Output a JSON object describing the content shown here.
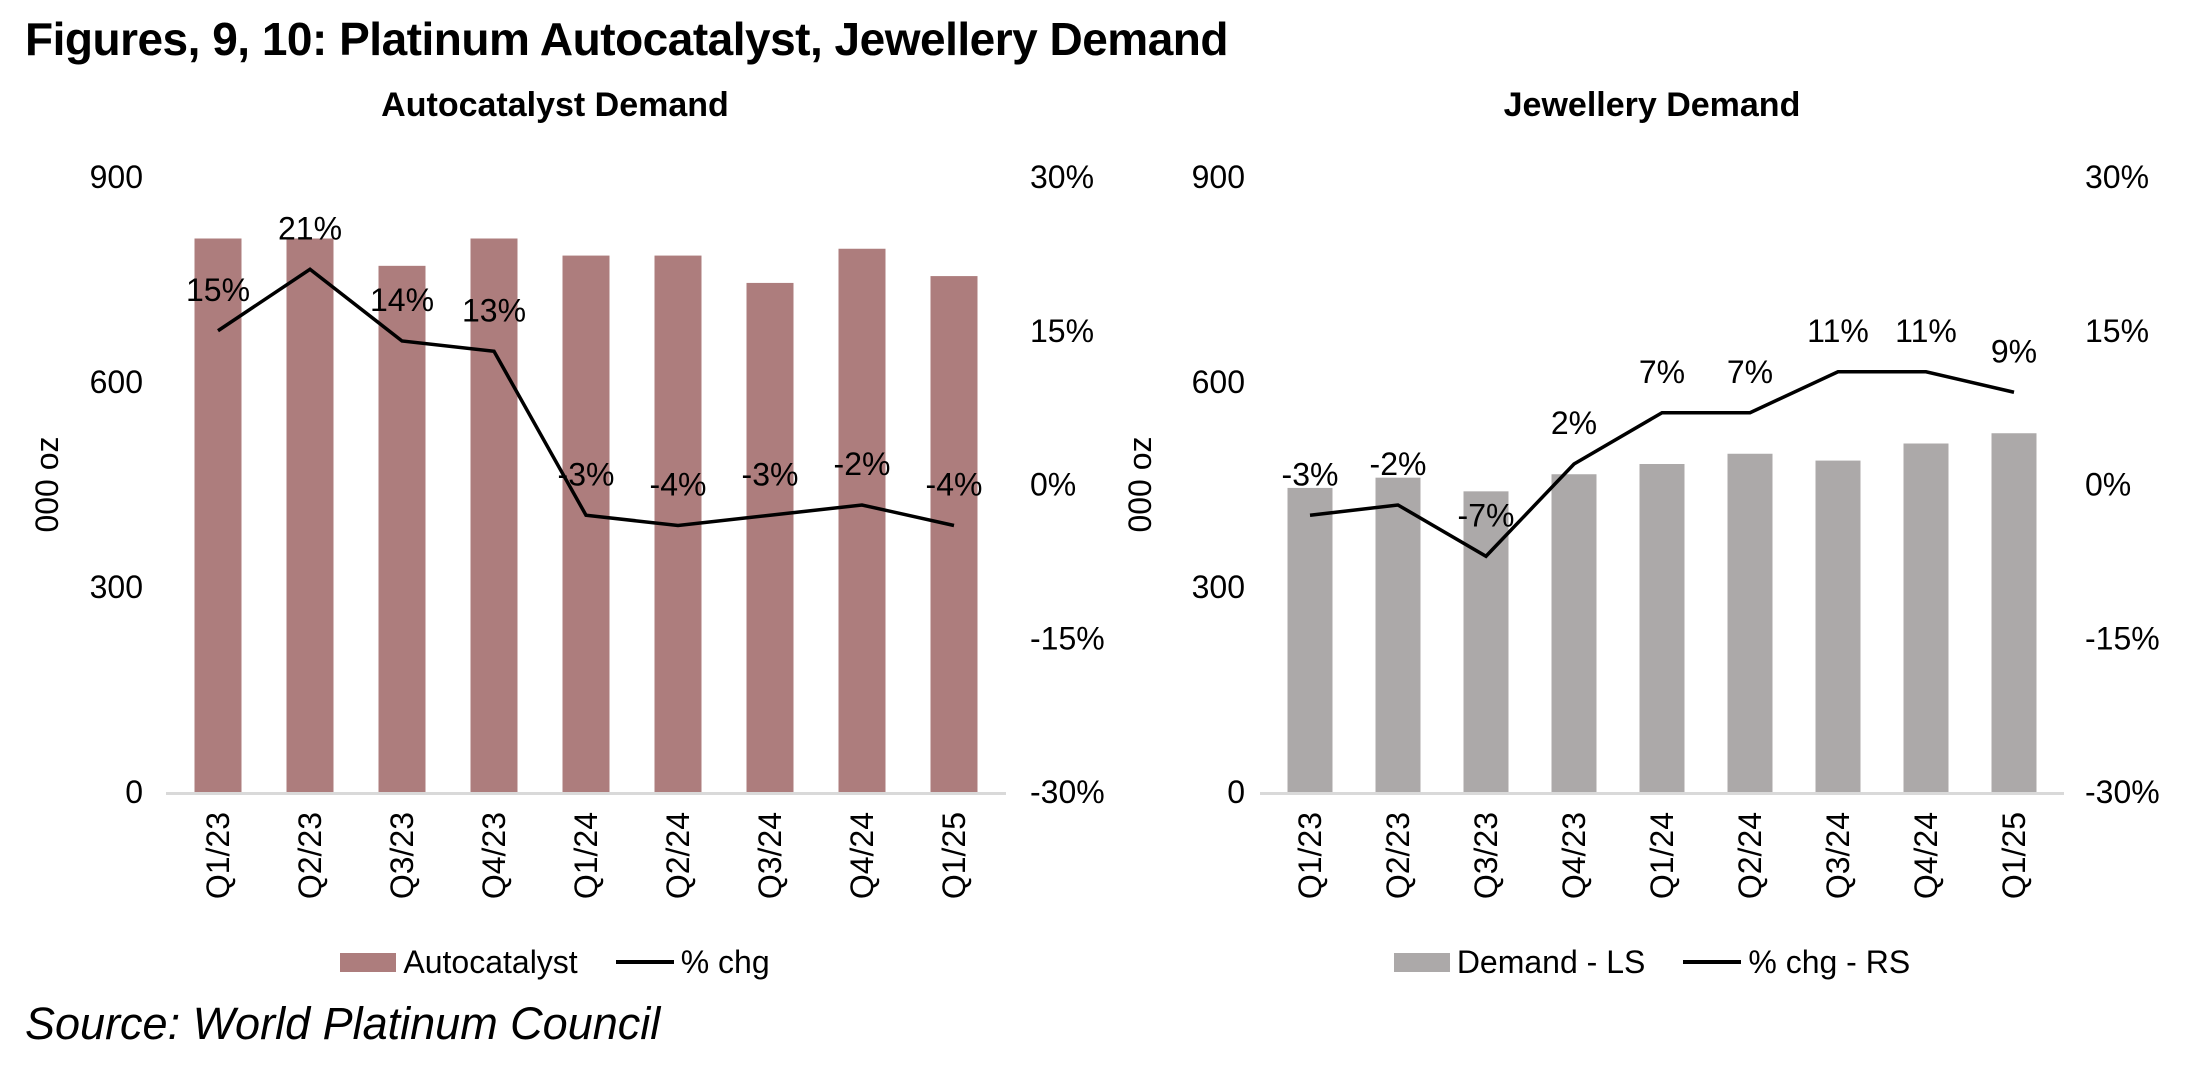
{
  "page_title": "Figures, 9, 10: Platinum Autocatalyst, Jewellery Demand",
  "source_note": "Source: World Platinum Council",
  "colors": {
    "autocatalyst_bar": "#AD7D7D",
    "jewellery_bar": "#ACA9A9",
    "line": "#000000",
    "axis_line": "#D9D9D9",
    "text": "#000000"
  },
  "chart_data": [
    {
      "type": "bar+line",
      "title": "Autocatalyst Demand",
      "categories": [
        "Q1/23",
        "Q2/23",
        "Q3/23",
        "Q4/23",
        "Q1/24",
        "Q2/24",
        "Q3/24",
        "Q4/24",
        "Q1/25"
      ],
      "left_axis": {
        "title": "000 oz",
        "ticks": [
          "900",
          "600",
          "300",
          "0"
        ],
        "min": 0,
        "max": 900
      },
      "right_axis": {
        "ticks": [
          "30%",
          "15%",
          "0%",
          "-15%",
          "-30%"
        ],
        "min": -30,
        "max": 30
      },
      "grid": false,
      "legend_position": "bottom",
      "series": [
        {
          "name": "Autocatalyst",
          "type": "bar",
          "axis": "left",
          "color": "#AD7D7D",
          "values": [
            810,
            810,
            770,
            810,
            785,
            785,
            745,
            795,
            755
          ]
        },
        {
          "name": "% chg",
          "type": "line",
          "axis": "right",
          "color": "#000000",
          "values": [
            15,
            21,
            14,
            13,
            -3,
            -4,
            -3,
            -2,
            -4
          ],
          "labels": [
            "15%",
            "21%",
            "14%",
            "13%",
            "-3%",
            "-4%",
            "-3%",
            "-2%",
            "-4%"
          ]
        }
      ]
    },
    {
      "type": "bar+line",
      "title": "Jewellery Demand",
      "categories": [
        "Q1/23",
        "Q2/23",
        "Q3/23",
        "Q4/23",
        "Q1/24",
        "Q2/24",
        "Q3/24",
        "Q4/24",
        "Q1/25"
      ],
      "left_axis": {
        "title": "000 oz",
        "ticks": [
          "900",
          "600",
          "300",
          "0"
        ],
        "min": 0,
        "max": 900
      },
      "right_axis": {
        "ticks": [
          "30%",
          "15%",
          "0%",
          "-15%",
          "-30%"
        ],
        "min": -30,
        "max": 30
      },
      "grid": false,
      "legend_position": "bottom",
      "series": [
        {
          "name": "Demand - LS",
          "type": "bar",
          "axis": "left",
          "color": "#ACA9A9",
          "values": [
            445,
            460,
            440,
            465,
            480,
            495,
            485,
            510,
            525
          ]
        },
        {
          "name": "% chg - RS",
          "type": "line",
          "axis": "right",
          "color": "#000000",
          "values": [
            -3,
            -2,
            -7,
            2,
            7,
            7,
            11,
            11,
            9
          ],
          "labels": [
            "-3%",
            "-2%",
            "-7%",
            "2%",
            "7%",
            "7%",
            "11%",
            "11%",
            "9%"
          ]
        }
      ]
    }
  ]
}
